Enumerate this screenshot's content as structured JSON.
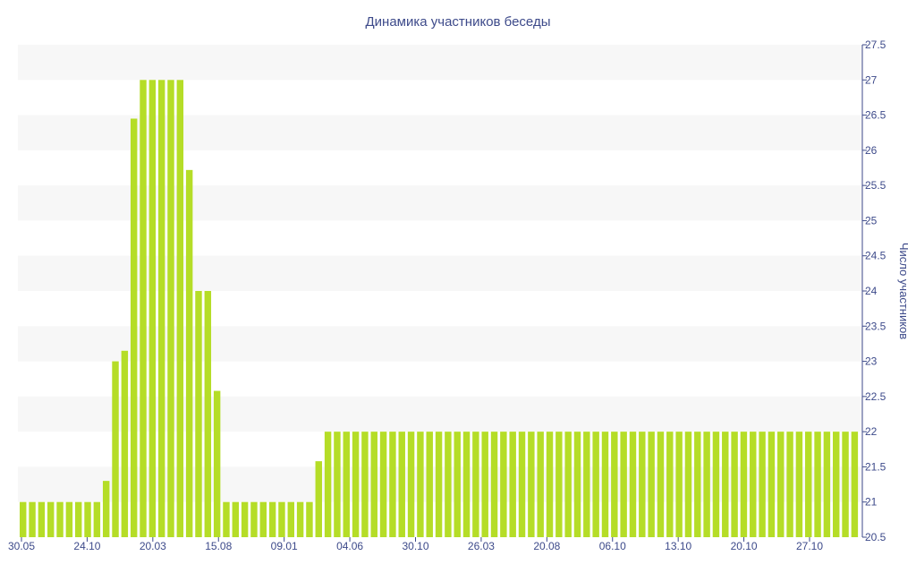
{
  "chart_data": {
    "type": "bar",
    "title": "Динамика участников беседы",
    "ylabel": "Число участников",
    "ylim": [
      20.5,
      27.5
    ],
    "y_ticks": [
      20.5,
      21,
      21.5,
      22,
      22.5,
      23,
      23.5,
      24,
      24.5,
      25,
      25.5,
      26,
      26.5,
      27,
      27.5
    ],
    "x_tick_labels": [
      "30.05",
      "24.10",
      "20.03",
      "15.08",
      "09.01",
      "04.06",
      "30.10",
      "26.03",
      "20.08",
      "06.10",
      "13.10",
      "20.10",
      "27.10"
    ],
    "y_axis_position": "right",
    "grid": "alternating horizontal bands",
    "bar_color": "#b5dd27",
    "values": [
      21,
      21,
      21,
      21,
      21,
      21,
      21,
      21,
      21,
      21.3,
      23,
      23.15,
      26.45,
      27,
      27,
      27,
      27,
      27,
      25.72,
      24,
      24,
      22.58,
      21,
      21,
      21,
      21,
      21,
      21,
      21,
      21,
      21,
      21,
      21.58,
      22,
      22,
      22,
      22,
      22,
      22,
      22,
      22,
      22,
      22,
      22,
      22,
      22,
      22,
      22,
      22,
      22,
      22,
      22,
      22,
      22,
      22,
      22,
      22,
      22,
      22,
      22,
      22,
      22,
      22,
      22,
      22,
      22,
      22,
      22,
      22,
      22,
      22,
      22,
      22,
      22,
      22,
      22,
      22,
      22,
      22,
      22,
      22,
      22,
      22,
      22,
      22,
      22,
      22,
      22,
      22,
      22,
      22
    ]
  }
}
